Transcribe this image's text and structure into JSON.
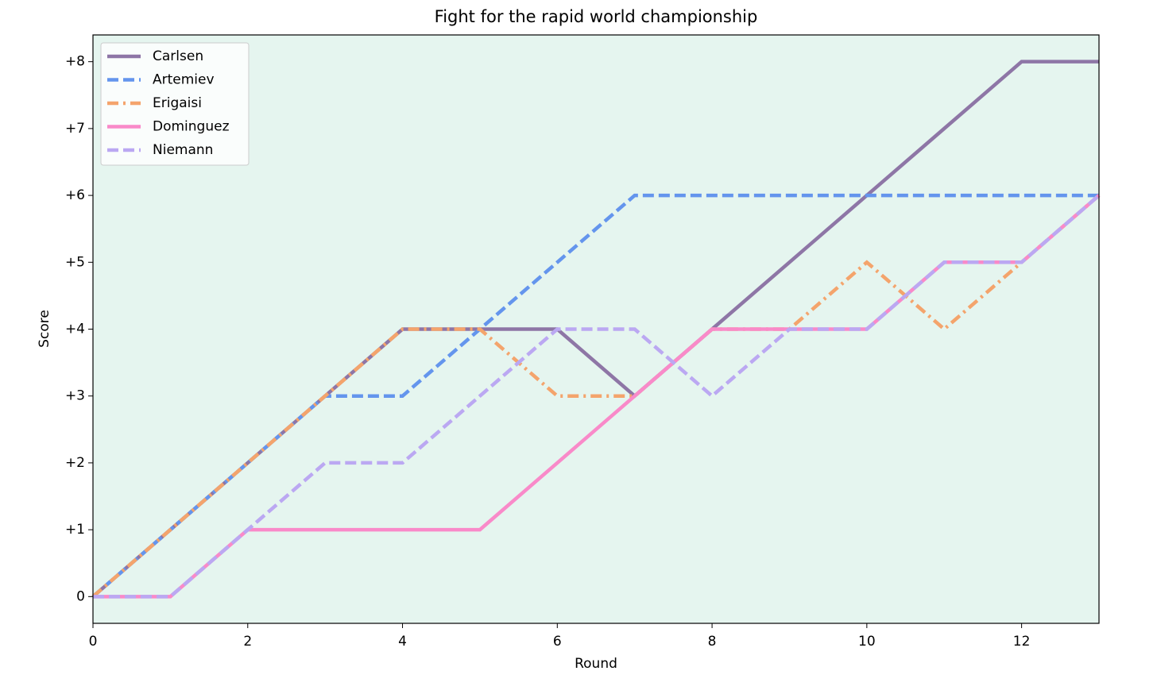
{
  "chart_data": {
    "type": "line",
    "title": "Fight for the rapid world championship",
    "x_label": "Round",
    "y_label": "Score",
    "x": [
      0,
      1,
      2,
      3,
      4,
      5,
      6,
      7,
      8,
      9,
      10,
      11,
      12,
      13
    ],
    "series": [
      {
        "name": "Carlsen",
        "color": "#8e76a6",
        "linestyle": "solid",
        "values": [
          0,
          1,
          2,
          3,
          4,
          4,
          4,
          3,
          4,
          5,
          6,
          7,
          8,
          8
        ]
      },
      {
        "name": "Artemiev",
        "color": "#6495ed",
        "linestyle": "dashed",
        "values": [
          0,
          1,
          2,
          3,
          3,
          4,
          5,
          6,
          6,
          6,
          6,
          6,
          6,
          6
        ]
      },
      {
        "name": "Erigaisi",
        "color": "#f4a46c",
        "linestyle": "dashdot",
        "values": [
          0,
          1,
          2,
          3,
          4,
          4,
          3,
          3,
          4,
          4,
          5,
          4,
          5,
          6
        ]
      },
      {
        "name": "Dominguez",
        "color": "#f98ac9",
        "linestyle": "solid",
        "values": [
          0,
          0,
          1,
          1,
          1,
          1,
          2,
          3,
          4,
          4,
          4,
          5,
          5,
          6
        ]
      },
      {
        "name": "Niemann",
        "color": "#bba8f2",
        "linestyle": "dashed",
        "values": [
          0,
          0,
          1,
          2,
          2,
          3,
          4,
          4,
          3,
          4,
          4,
          5,
          5,
          6
        ]
      }
    ],
    "xlim": [
      0,
      13
    ],
    "xticks": [
      0,
      2,
      4,
      6,
      8,
      10,
      12
    ],
    "ylim": [
      -0.4,
      8.4
    ],
    "yticks": [
      0,
      {
        "value": 1,
        "label": "+1"
      },
      {
        "value": 2,
        "label": "+2"
      },
      {
        "value": 3,
        "label": "+3"
      },
      {
        "value": 4,
        "label": "+4"
      },
      {
        "value": 5,
        "label": "+5"
      },
      {
        "value": 6,
        "label": "+6"
      },
      {
        "value": 7,
        "label": "+7"
      },
      {
        "value": 8,
        "label": "+8"
      }
    ],
    "background": "#e5f5ef",
    "legend": "upper-left",
    "grid": false
  }
}
